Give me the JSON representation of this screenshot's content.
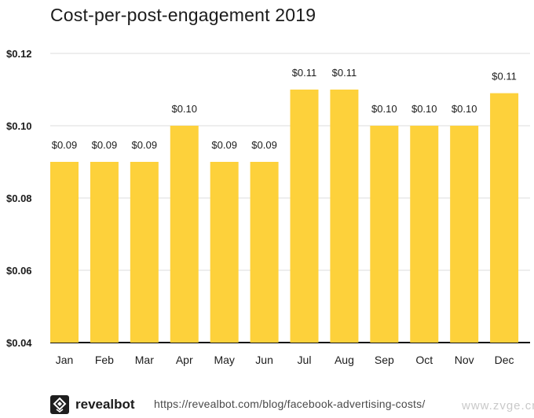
{
  "chart_data": {
    "type": "bar",
    "title": "Cost-per-post-engagement 2019",
    "xlabel": "",
    "ylabel": "",
    "categories": [
      "Jan",
      "Feb",
      "Mar",
      "Apr",
      "May",
      "Jun",
      "Jul",
      "Aug",
      "Sep",
      "Oct",
      "Nov",
      "Dec"
    ],
    "values": [
      0.09,
      0.09,
      0.09,
      0.1,
      0.09,
      0.09,
      0.11,
      0.11,
      0.1,
      0.1,
      0.1,
      0.109
    ],
    "data_labels": [
      "$0.09",
      "$0.09",
      "$0.09",
      "$0.10",
      "$0.09",
      "$0.09",
      "$0.11",
      "$0.11",
      "$0.10",
      "$0.10",
      "$0.10",
      "$0.11"
    ],
    "ylim": [
      0.04,
      0.12
    ],
    "yticks": [
      0.04,
      0.06,
      0.08,
      0.1,
      0.12
    ],
    "ytick_labels": [
      "$0.04",
      "$0.06",
      "$0.08",
      "$0.10",
      "$0.12"
    ],
    "grid": true,
    "bar_color": "#FDD13B"
  },
  "footer": {
    "brand": "revealbot",
    "source_url": "https://revealbot.com/blog/facebook-advertising-costs/"
  },
  "watermark": "www.zvge.cn"
}
